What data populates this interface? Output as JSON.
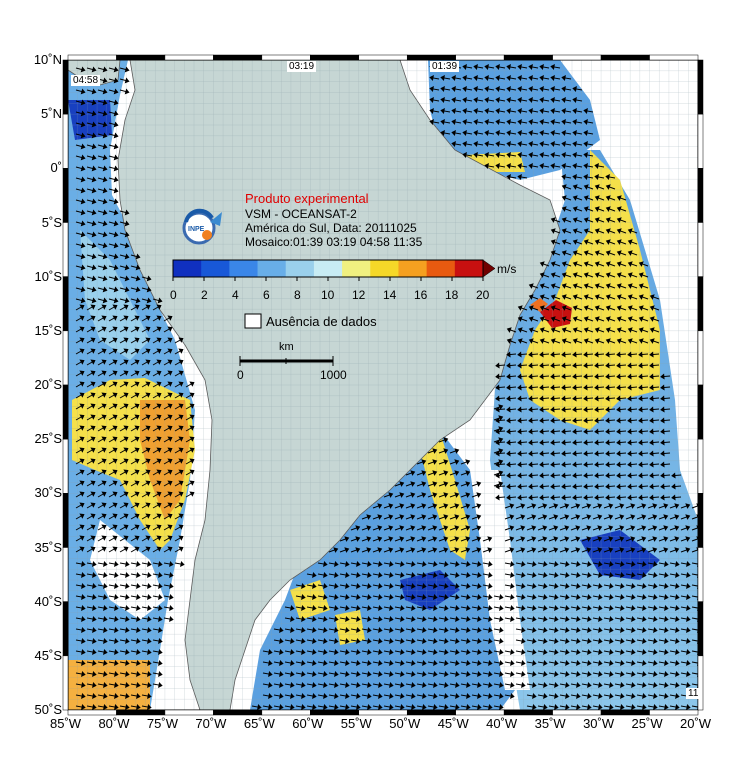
{
  "title": "Produto experimental",
  "subtitle_line1": "VSM - OCEANSAT-2",
  "subtitle_line2": "América do Sul, Data: 20111025",
  "subtitle_line3": "Mosaico:01:39 03:19 04:58 11:35",
  "logo_text": "INPE",
  "colorbar": {
    "unit": "m/s",
    "ticks": [
      "0",
      "2",
      "4",
      "6",
      "8",
      "10",
      "12",
      "14",
      "16",
      "18",
      "20"
    ],
    "colors": [
      "#1030c0",
      "#1858d8",
      "#3a86e8",
      "#68aee8",
      "#9ad0ec",
      "#c8ecf4",
      "#f0f080",
      "#f5d828",
      "#f5a020",
      "#e85a10",
      "#c81010",
      "#700000"
    ]
  },
  "no_data_label": "Ausência de dados",
  "scale_bar": {
    "unit": "km",
    "start": "0",
    "end": "1000"
  },
  "pass_times": [
    "04:58",
    "03:19",
    "01:39",
    "11"
  ],
  "lon_ticks": [
    "85˚W",
    "80˚W",
    "75˚W",
    "70˚W",
    "65˚W",
    "60˚W",
    "55˚W",
    "50˚W",
    "45˚W",
    "40˚W",
    "35˚W",
    "30˚W",
    "25˚W",
    "20˚W"
  ],
  "lat_ticks": [
    "10˚N",
    "5˚N",
    "0˚",
    "5˚S",
    "10˚S",
    "15˚S",
    "20˚S",
    "25˚S",
    "30˚S",
    "35˚S",
    "40˚S",
    "45˚S",
    "50˚S"
  ],
  "map_extent": {
    "lon_min": -85,
    "lon_max": -20,
    "lat_min": -50,
    "lat_max": 10
  },
  "colors": {
    "land": "#c6d6d4",
    "ocean_nodata": "#ffffff",
    "grid": "#e8eef0",
    "arrow": "#000000"
  }
}
